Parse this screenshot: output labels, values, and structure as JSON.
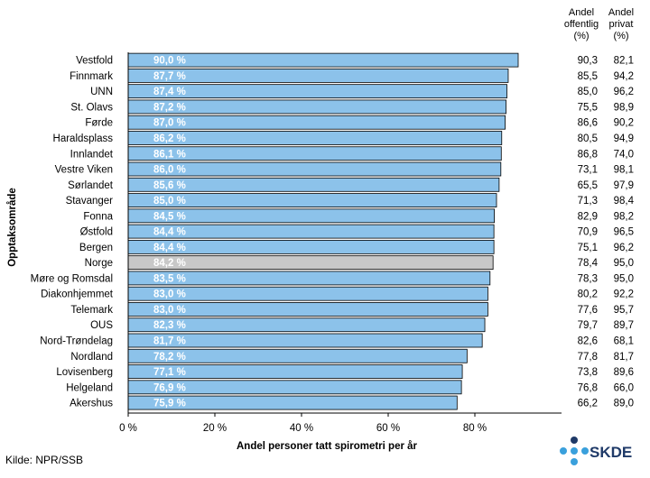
{
  "chart_data": {
    "type": "bar",
    "orientation": "horizontal",
    "categories": [
      "Vestfold",
      "Finnmark",
      "UNN",
      "St. Olavs",
      "Førde",
      "Haraldsplass",
      "Innlandet",
      "Vestre Viken",
      "Sørlandet",
      "Stavanger",
      "Fonna",
      "Østfold",
      "Bergen",
      "Norge",
      "Møre og Romsdal",
      "Diakonhjemmet",
      "Telemark",
      "OUS",
      "Nord-Trøndelag",
      "Nordland",
      "Lovisenberg",
      "Helgeland",
      "Akershus"
    ],
    "values": [
      90.0,
      87.7,
      87.4,
      87.2,
      87.0,
      86.2,
      86.1,
      86.0,
      85.6,
      85.0,
      84.5,
      84.4,
      84.4,
      84.2,
      83.5,
      83.0,
      83.0,
      82.3,
      81.7,
      78.2,
      77.1,
      76.9,
      75.9
    ],
    "value_labels": [
      "90,0 %",
      "87,7 %",
      "87,4 %",
      "87,2 %",
      "87,0 %",
      "86,2 %",
      "86,1 %",
      "86,0 %",
      "85,6 %",
      "85,0 %",
      "84,5 %",
      "84,4 %",
      "84,4 %",
      "84,2 %",
      "83,5 %",
      "83,0 %",
      "83,0 %",
      "82,3 %",
      "81,7 %",
      "78,2 %",
      "77,1 %",
      "76,9 %",
      "75,9 %"
    ],
    "highlight_category": "Norge",
    "colors": {
      "bar": "#8cc2ea",
      "highlight": "#c8c8c8",
      "label": "#ffffff",
      "border": "#000000"
    },
    "xlim": [
      0,
      100
    ],
    "xticks": [
      0,
      20,
      40,
      60,
      80
    ],
    "xtick_labels": [
      "0 %",
      "20 %",
      "40 %",
      "60 %",
      "80 %"
    ],
    "xlabel": "Andel personer tatt spirometri per år",
    "ylabel": "Opptaksområde",
    "grid": false,
    "columns": [
      {
        "header": [
          "Andel",
          "offentlig",
          "(%)"
        ],
        "values": [
          "90,3",
          "85,5",
          "85,0",
          "75,5",
          "86,6",
          "80,5",
          "86,8",
          "73,1",
          "65,5",
          "71,3",
          "82,9",
          "70,9",
          "75,1",
          "78,4",
          "78,3",
          "80,2",
          "77,6",
          "79,7",
          "82,6",
          "77,8",
          "73,8",
          "76,8",
          "66,2"
        ]
      },
      {
        "header": [
          "Andel",
          "privat",
          "(%)"
        ],
        "values": [
          "82,1",
          "94,2",
          "96,2",
          "98,9",
          "90,2",
          "94,9",
          "74,0",
          "98,1",
          "97,9",
          "98,4",
          "98,2",
          "96,5",
          "96,2",
          "95,0",
          "95,0",
          "92,2",
          "95,7",
          "89,7",
          "68,1",
          "81,7",
          "89,6",
          "66,0",
          "89,0"
        ]
      }
    ]
  },
  "footer": {
    "source": "Kilde: NPR/SSB"
  },
  "logo": {
    "text": "SKDE",
    "colors": {
      "dark": "#1f3a68",
      "light": "#3aa0dc",
      "text": "#1f3a68"
    }
  }
}
